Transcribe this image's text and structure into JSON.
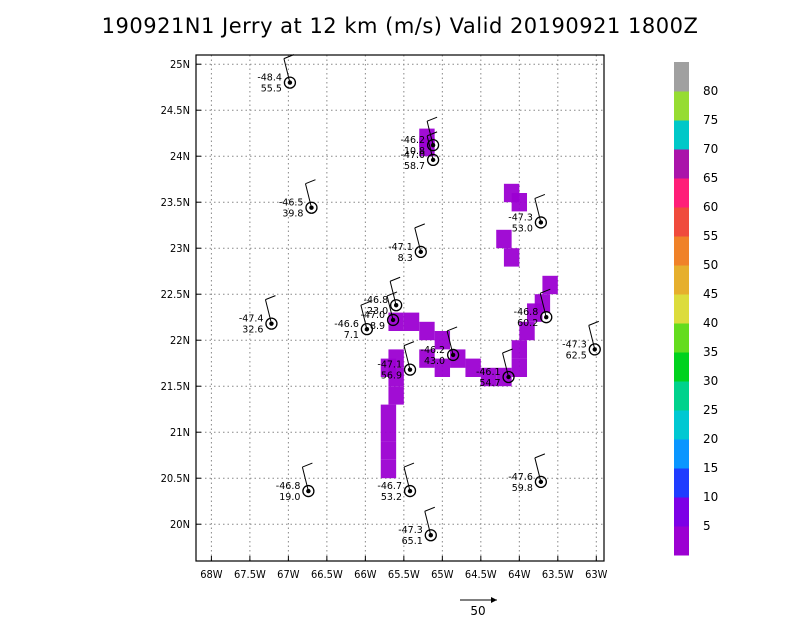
{
  "chart_data": {
    "type": "scatter",
    "title": "190921N1 Jerry at 12 km (m/s) Valid 20190921 1800Z",
    "xlim": [
      -68.2,
      -62.9
    ],
    "ylim": [
      19.6,
      25.1
    ],
    "x_ticks": [
      -68,
      -67.5,
      -67,
      -66.5,
      -66,
      -65.5,
      -65,
      -64.5,
      -64,
      -63.5,
      -63
    ],
    "x_tick_labels": [
      "68W",
      "67.5W",
      "67W",
      "66.5W",
      "66W",
      "65.5W",
      "65W",
      "64.5W",
      "64W",
      "63.5W",
      "63W"
    ],
    "y_ticks": [
      20,
      20.5,
      21,
      21.5,
      22,
      22.5,
      23,
      23.5,
      24,
      24.5,
      25
    ],
    "y_tick_labels": [
      "20N",
      "20.5N",
      "21N",
      "21.5N",
      "22N",
      "22.5N",
      "23N",
      "23.5N",
      "24N",
      "24.5N",
      "25N"
    ],
    "grid": true,
    "colorbar": {
      "levels": [
        "5",
        "10",
        "15",
        "20",
        "25",
        "30",
        "35",
        "40",
        "45",
        "50",
        "55",
        "60",
        "65",
        "70",
        "75",
        "80"
      ],
      "colors": [
        "#9c00d2",
        "#7d00e6",
        "#1f3cff",
        "#0a96ff",
        "#00c8d2",
        "#00d28c",
        "#00d21e",
        "#64dc1e",
        "#dcdc3c",
        "#e6af2d",
        "#f08228",
        "#f04b3c",
        "#ff1e78",
        "#aa14aa",
        "#00c8c8",
        "#96dc32",
        "#a0a0a0"
      ]
    },
    "swath_color": "#9c00d2",
    "swath_cells": [
      [
        -65.7,
        21.7
      ],
      [
        -65.6,
        21.6
      ],
      [
        -65.6,
        21.4
      ],
      [
        -65.7,
        21.2
      ],
      [
        -65.7,
        21.0
      ],
      [
        -65.7,
        20.8
      ],
      [
        -65.7,
        20.6
      ],
      [
        -65.6,
        21.8
      ],
      [
        -65.6,
        22.2
      ],
      [
        -65.4,
        22.2
      ],
      [
        -65.2,
        22.1
      ],
      [
        -65.0,
        22.0
      ],
      [
        -65.2,
        21.8
      ],
      [
        -65.0,
        21.7
      ],
      [
        -64.8,
        21.8
      ],
      [
        -64.6,
        21.7
      ],
      [
        -64.4,
        21.6
      ],
      [
        -64.2,
        21.6
      ],
      [
        -64.0,
        21.7
      ],
      [
        -64.0,
        21.9
      ],
      [
        -63.9,
        22.1
      ],
      [
        -63.8,
        22.3
      ],
      [
        -63.7,
        22.4
      ],
      [
        -63.6,
        22.6
      ],
      [
        -64.1,
        22.9
      ],
      [
        -64.2,
        23.1
      ],
      [
        -64.0,
        23.5
      ],
      [
        -64.1,
        23.6
      ],
      [
        -65.2,
        24.1
      ],
      [
        -65.2,
        24.2
      ]
    ],
    "dropsondes": [
      {
        "x": -66.98,
        "y": 24.8,
        "temp": "-48.4",
        "speed": "55.5"
      },
      {
        "x": -65.12,
        "y": 24.12,
        "temp": "-46.2",
        "speed": "10.8"
      },
      {
        "x": -65.12,
        "y": 23.96,
        "temp": "-47.0",
        "speed": "58.7"
      },
      {
        "x": -66.7,
        "y": 23.44,
        "temp": "-46.5",
        "speed": "39.8"
      },
      {
        "x": -63.72,
        "y": 23.28,
        "temp": "-47.3",
        "speed": "53.0"
      },
      {
        "x": -65.28,
        "y": 22.96,
        "temp": "-47.1",
        "speed": "8.3"
      },
      {
        "x": -65.6,
        "y": 22.38,
        "temp": "-46.8",
        "speed": "23.0"
      },
      {
        "x": -65.64,
        "y": 22.22,
        "temp": "-47.0",
        "speed": "8.9"
      },
      {
        "x": -67.22,
        "y": 22.18,
        "temp": "-47.4",
        "speed": "32.6"
      },
      {
        "x": -65.98,
        "y": 22.12,
        "temp": "-46.6",
        "speed": "7.1"
      },
      {
        "x": -63.65,
        "y": 22.25,
        "temp": "-46.8",
        "speed": "60.2"
      },
      {
        "x": -63.02,
        "y": 21.9,
        "temp": "-47.3",
        "speed": "62.5"
      },
      {
        "x": -64.86,
        "y": 21.84,
        "temp": "-46.2",
        "speed": "43.0"
      },
      {
        "x": -65.42,
        "y": 21.68,
        "temp": "-47.1",
        "speed": "56.9"
      },
      {
        "x": -64.14,
        "y": 21.6,
        "temp": "-46.1",
        "speed": "54.7"
      },
      {
        "x": -66.74,
        "y": 20.36,
        "temp": "-46.8",
        "speed": "19.0"
      },
      {
        "x": -65.42,
        "y": 20.36,
        "temp": "-46.7",
        "speed": "53.2"
      },
      {
        "x": -63.72,
        "y": 20.46,
        "temp": "-47.6",
        "speed": "59.8"
      },
      {
        "x": -65.15,
        "y": 19.88,
        "temp": "-47.3",
        "speed": "65.1"
      }
    ],
    "reference_vector": {
      "label": "50",
      "magnitude": 50
    }
  }
}
